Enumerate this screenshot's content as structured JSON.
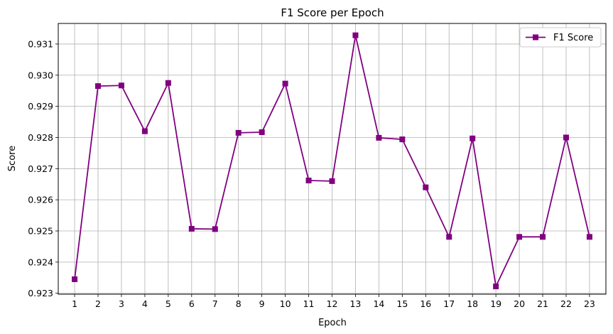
{
  "chart_data": {
    "type": "line",
    "title": "F1 Score per Epoch",
    "xlabel": "Epoch",
    "ylabel": "Score",
    "x": [
      1,
      2,
      3,
      4,
      5,
      6,
      7,
      8,
      9,
      10,
      11,
      12,
      13,
      14,
      15,
      16,
      17,
      18,
      19,
      20,
      21,
      22,
      23
    ],
    "series": [
      {
        "name": "F1 Score",
        "color": "#800080",
        "marker": "square",
        "values": [
          0.92345,
          0.92965,
          0.92967,
          0.9282,
          0.92975,
          0.92507,
          0.92506,
          0.92815,
          0.92817,
          0.92973,
          0.92662,
          0.9266,
          0.93128,
          0.92799,
          0.92794,
          0.9264,
          0.92481,
          0.92797,
          0.92322,
          0.92481,
          0.92481,
          0.928,
          0.92481
        ]
      }
    ],
    "xlim": [
      0.3,
      23.7
    ],
    "ylim": [
      0.92297,
      0.93166
    ],
    "y_ticks": [
      "0.923",
      "0.924",
      "0.925",
      "0.926",
      "0.927",
      "0.928",
      "0.929",
      "0.930",
      "0.931"
    ],
    "y_tick_values": [
      0.923,
      0.924,
      0.925,
      0.926,
      0.927,
      0.928,
      0.929,
      0.93,
      0.931
    ],
    "grid": true,
    "legend_position": "top-right"
  }
}
